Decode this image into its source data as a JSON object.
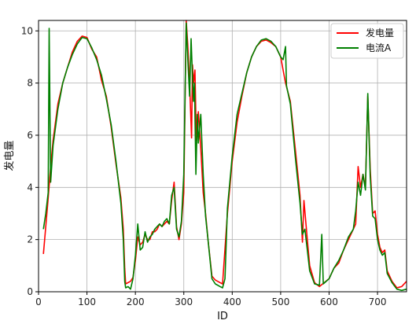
{
  "chart_data": {
    "type": "line",
    "xlabel": "ID",
    "ylabel": "发电量",
    "xlim": [
      0,
      760
    ],
    "ylim": [
      0,
      10.4
    ],
    "xticks": [
      0,
      100,
      200,
      300,
      400,
      500,
      600,
      700
    ],
    "yticks": [
      0,
      2,
      4,
      6,
      8,
      10
    ],
    "grid": true,
    "legend_position": "top-right",
    "series": [
      {
        "name": "发电量",
        "color": "#ff0000",
        "points": [
          [
            10,
            1.45
          ],
          [
            15,
            2.5
          ],
          [
            20,
            3.6
          ],
          [
            25,
            4.8
          ],
          [
            30,
            5.8
          ],
          [
            40,
            7.2
          ],
          [
            50,
            8.0
          ],
          [
            60,
            8.6
          ],
          [
            70,
            9.2
          ],
          [
            80,
            9.6
          ],
          [
            90,
            9.8
          ],
          [
            100,
            9.75
          ],
          [
            110,
            9.3
          ],
          [
            120,
            9.0
          ],
          [
            130,
            8.1
          ],
          [
            140,
            7.5
          ],
          [
            150,
            6.3
          ],
          [
            160,
            4.9
          ],
          [
            170,
            3.6
          ],
          [
            175,
            2.4
          ],
          [
            178,
            0.9
          ],
          [
            180,
            0.3
          ],
          [
            190,
            0.4
          ],
          [
            195,
            0.55
          ],
          [
            200,
            1.2
          ],
          [
            205,
            2.1
          ],
          [
            210,
            1.8
          ],
          [
            215,
            1.9
          ],
          [
            220,
            2.2
          ],
          [
            225,
            2.0
          ],
          [
            230,
            2.0
          ],
          [
            235,
            2.3
          ],
          [
            240,
            2.3
          ],
          [
            245,
            2.4
          ],
          [
            250,
            2.6
          ],
          [
            255,
            2.5
          ],
          [
            260,
            2.6
          ],
          [
            265,
            2.7
          ],
          [
            270,
            2.6
          ],
          [
            275,
            3.5
          ],
          [
            280,
            4.2
          ],
          [
            285,
            2.5
          ],
          [
            290,
            2.0
          ],
          [
            295,
            2.6
          ],
          [
            300,
            3.8
          ],
          [
            305,
            10.4
          ],
          [
            308,
            9.5
          ],
          [
            312,
            8.0
          ],
          [
            316,
            5.9
          ],
          [
            318,
            8.7
          ],
          [
            320,
            8.0
          ],
          [
            323,
            8.5
          ],
          [
            326,
            5.8
          ],
          [
            328,
            6.3
          ],
          [
            330,
            6.9
          ],
          [
            335,
            5.5
          ],
          [
            340,
            3.8
          ],
          [
            345,
            3.0
          ],
          [
            350,
            2.0
          ],
          [
            358,
            0.6
          ],
          [
            365,
            0.45
          ],
          [
            375,
            0.35
          ],
          [
            380,
            0.3
          ],
          [
            390,
            3.0
          ],
          [
            400,
            5.0
          ],
          [
            410,
            6.5
          ],
          [
            420,
            7.5
          ],
          [
            430,
            8.4
          ],
          [
            440,
            9.0
          ],
          [
            450,
            9.4
          ],
          [
            460,
            9.6
          ],
          [
            470,
            9.65
          ],
          [
            480,
            9.55
          ],
          [
            490,
            9.4
          ],
          [
            500,
            9.0
          ],
          [
            510,
            8.0
          ],
          [
            520,
            7.3
          ],
          [
            530,
            5.5
          ],
          [
            540,
            3.7
          ],
          [
            545,
            1.9
          ],
          [
            548,
            3.5
          ],
          [
            555,
            2.0
          ],
          [
            560,
            1.0
          ],
          [
            570,
            0.35
          ],
          [
            580,
            0.2
          ],
          [
            590,
            0.35
          ],
          [
            600,
            0.5
          ],
          [
            610,
            0.9
          ],
          [
            620,
            1.1
          ],
          [
            630,
            1.6
          ],
          [
            640,
            2.0
          ],
          [
            650,
            2.4
          ],
          [
            655,
            2.6
          ],
          [
            660,
            4.8
          ],
          [
            665,
            4.0
          ],
          [
            670,
            4.5
          ],
          [
            675,
            4.0
          ],
          [
            680,
            7.5
          ],
          [
            685,
            4.7
          ],
          [
            690,
            3.0
          ],
          [
            695,
            3.1
          ],
          [
            700,
            2.2
          ],
          [
            705,
            1.7
          ],
          [
            710,
            1.5
          ],
          [
            715,
            1.6
          ],
          [
            720,
            0.8
          ],
          [
            730,
            0.4
          ],
          [
            740,
            0.15
          ],
          [
            750,
            0.2
          ],
          [
            760,
            0.4
          ]
        ]
      },
      {
        "name": "电流A",
        "color": "#008000",
        "points": [
          [
            10,
            2.4
          ],
          [
            15,
            3.0
          ],
          [
            20,
            3.8
          ],
          [
            22,
            10.1
          ],
          [
            25,
            4.2
          ],
          [
            30,
            5.6
          ],
          [
            40,
            7.0
          ],
          [
            50,
            8.0
          ],
          [
            60,
            8.6
          ],
          [
            70,
            9.1
          ],
          [
            80,
            9.5
          ],
          [
            90,
            9.75
          ],
          [
            100,
            9.7
          ],
          [
            110,
            9.35
          ],
          [
            120,
            8.9
          ],
          [
            130,
            8.3
          ],
          [
            140,
            7.4
          ],
          [
            150,
            6.4
          ],
          [
            160,
            5.0
          ],
          [
            170,
            3.4
          ],
          [
            175,
            2.0
          ],
          [
            178,
            0.4
          ],
          [
            180,
            0.15
          ],
          [
            185,
            0.2
          ],
          [
            190,
            0.1
          ],
          [
            195,
            0.5
          ],
          [
            200,
            1.4
          ],
          [
            205,
            2.6
          ],
          [
            210,
            1.6
          ],
          [
            215,
            1.7
          ],
          [
            220,
            2.3
          ],
          [
            225,
            1.9
          ],
          [
            230,
            2.1
          ],
          [
            235,
            2.2
          ],
          [
            240,
            2.4
          ],
          [
            245,
            2.5
          ],
          [
            250,
            2.6
          ],
          [
            255,
            2.5
          ],
          [
            260,
            2.7
          ],
          [
            265,
            2.8
          ],
          [
            270,
            2.6
          ],
          [
            275,
            3.7
          ],
          [
            280,
            4.0
          ],
          [
            285,
            2.4
          ],
          [
            290,
            2.1
          ],
          [
            295,
            2.7
          ],
          [
            300,
            4.5
          ],
          [
            305,
            10.3
          ],
          [
            308,
            9.0
          ],
          [
            312,
            7.5
          ],
          [
            315,
            9.7
          ],
          [
            318,
            8.2
          ],
          [
            320,
            7.3
          ],
          [
            322,
            8.0
          ],
          [
            325,
            4.5
          ],
          [
            328,
            6.8
          ],
          [
            330,
            5.7
          ],
          [
            335,
            6.8
          ],
          [
            340,
            4.5
          ],
          [
            345,
            2.9
          ],
          [
            350,
            2.0
          ],
          [
            358,
            0.5
          ],
          [
            365,
            0.3
          ],
          [
            375,
            0.2
          ],
          [
            380,
            0.15
          ],
          [
            385,
            0.5
          ],
          [
            390,
            3.2
          ],
          [
            400,
            5.2
          ],
          [
            410,
            6.8
          ],
          [
            420,
            7.6
          ],
          [
            430,
            8.4
          ],
          [
            440,
            9.0
          ],
          [
            450,
            9.4
          ],
          [
            460,
            9.65
          ],
          [
            470,
            9.7
          ],
          [
            480,
            9.6
          ],
          [
            490,
            9.4
          ],
          [
            500,
            9.0
          ],
          [
            505,
            8.9
          ],
          [
            510,
            9.4
          ],
          [
            512,
            7.9
          ],
          [
            520,
            7.2
          ],
          [
            530,
            5.2
          ],
          [
            540,
            3.4
          ],
          [
            545,
            2.2
          ],
          [
            550,
            2.4
          ],
          [
            555,
            1.6
          ],
          [
            560,
            0.8
          ],
          [
            570,
            0.3
          ],
          [
            580,
            0.25
          ],
          [
            585,
            2.2
          ],
          [
            588,
            0.3
          ],
          [
            600,
            0.5
          ],
          [
            610,
            0.9
          ],
          [
            620,
            1.2
          ],
          [
            630,
            1.6
          ],
          [
            640,
            2.1
          ],
          [
            650,
            2.4
          ],
          [
            655,
            3.1
          ],
          [
            660,
            4.2
          ],
          [
            665,
            3.7
          ],
          [
            670,
            4.5
          ],
          [
            675,
            3.9
          ],
          [
            680,
            7.6
          ],
          [
            685,
            4.4
          ],
          [
            690,
            2.9
          ],
          [
            695,
            2.8
          ],
          [
            700,
            2.0
          ],
          [
            705,
            1.6
          ],
          [
            710,
            1.4
          ],
          [
            715,
            1.5
          ],
          [
            720,
            0.7
          ],
          [
            730,
            0.35
          ],
          [
            740,
            0.1
          ],
          [
            750,
            0.05
          ],
          [
            760,
            0.1
          ]
        ]
      }
    ]
  }
}
